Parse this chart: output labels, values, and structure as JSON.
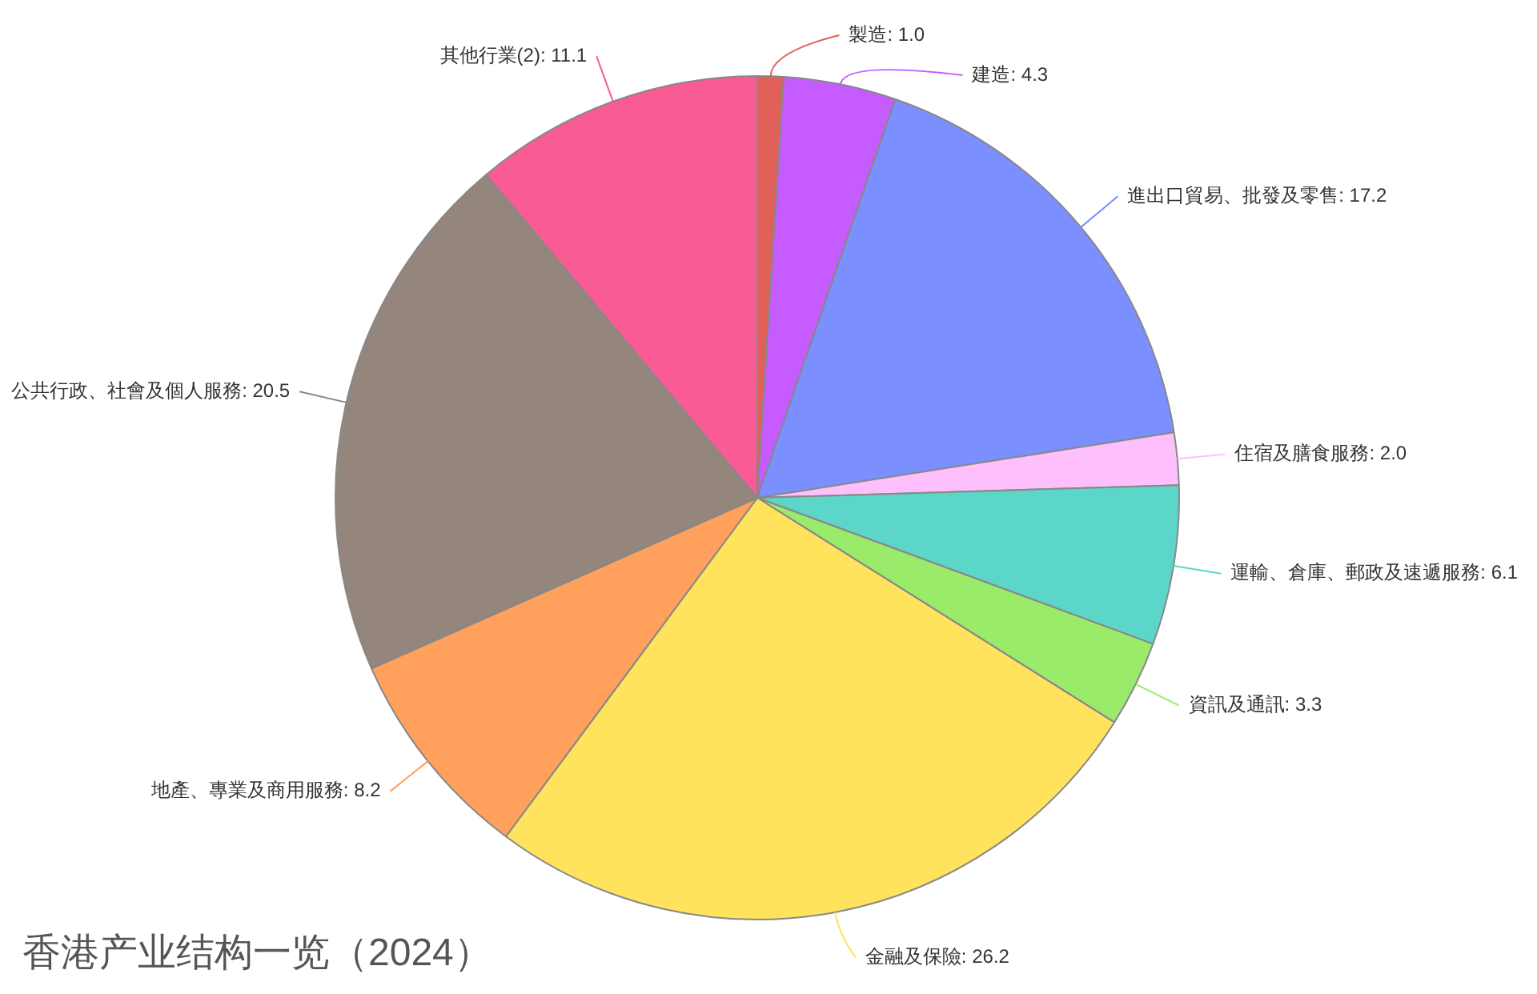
{
  "chart_data": {
    "type": "pie",
    "title": "香港产业结构一览（2024）",
    "categories": [
      "製造",
      "建造",
      "進出口貿易、批發及零售",
      "住宿及膳食服務",
      "運輸、倉庫、郵政及速遞服務",
      "資訊及通訊",
      "金融及保險",
      "地產、專業及商用服務",
      "公共行政、社會及個人服務",
      "其他行業(2)"
    ],
    "values": [
      1.0,
      4.3,
      17.2,
      2.0,
      6.1,
      3.3,
      26.2,
      8.2,
      20.5,
      11.1
    ],
    "value_labels": [
      "1.0",
      "4.3",
      "17.2",
      "2.0",
      "6.1",
      "3.3",
      "26.2",
      "8.2",
      "20.5",
      "11.1"
    ],
    "colors": [
      "#e0605a",
      "#c65bff",
      "#7b8fff",
      "#fdc0fd",
      "#5cd6c8",
      "#9beb6b",
      "#ffe35c",
      "#ffa05c",
      "#94857d",
      "#f95b94"
    ]
  }
}
